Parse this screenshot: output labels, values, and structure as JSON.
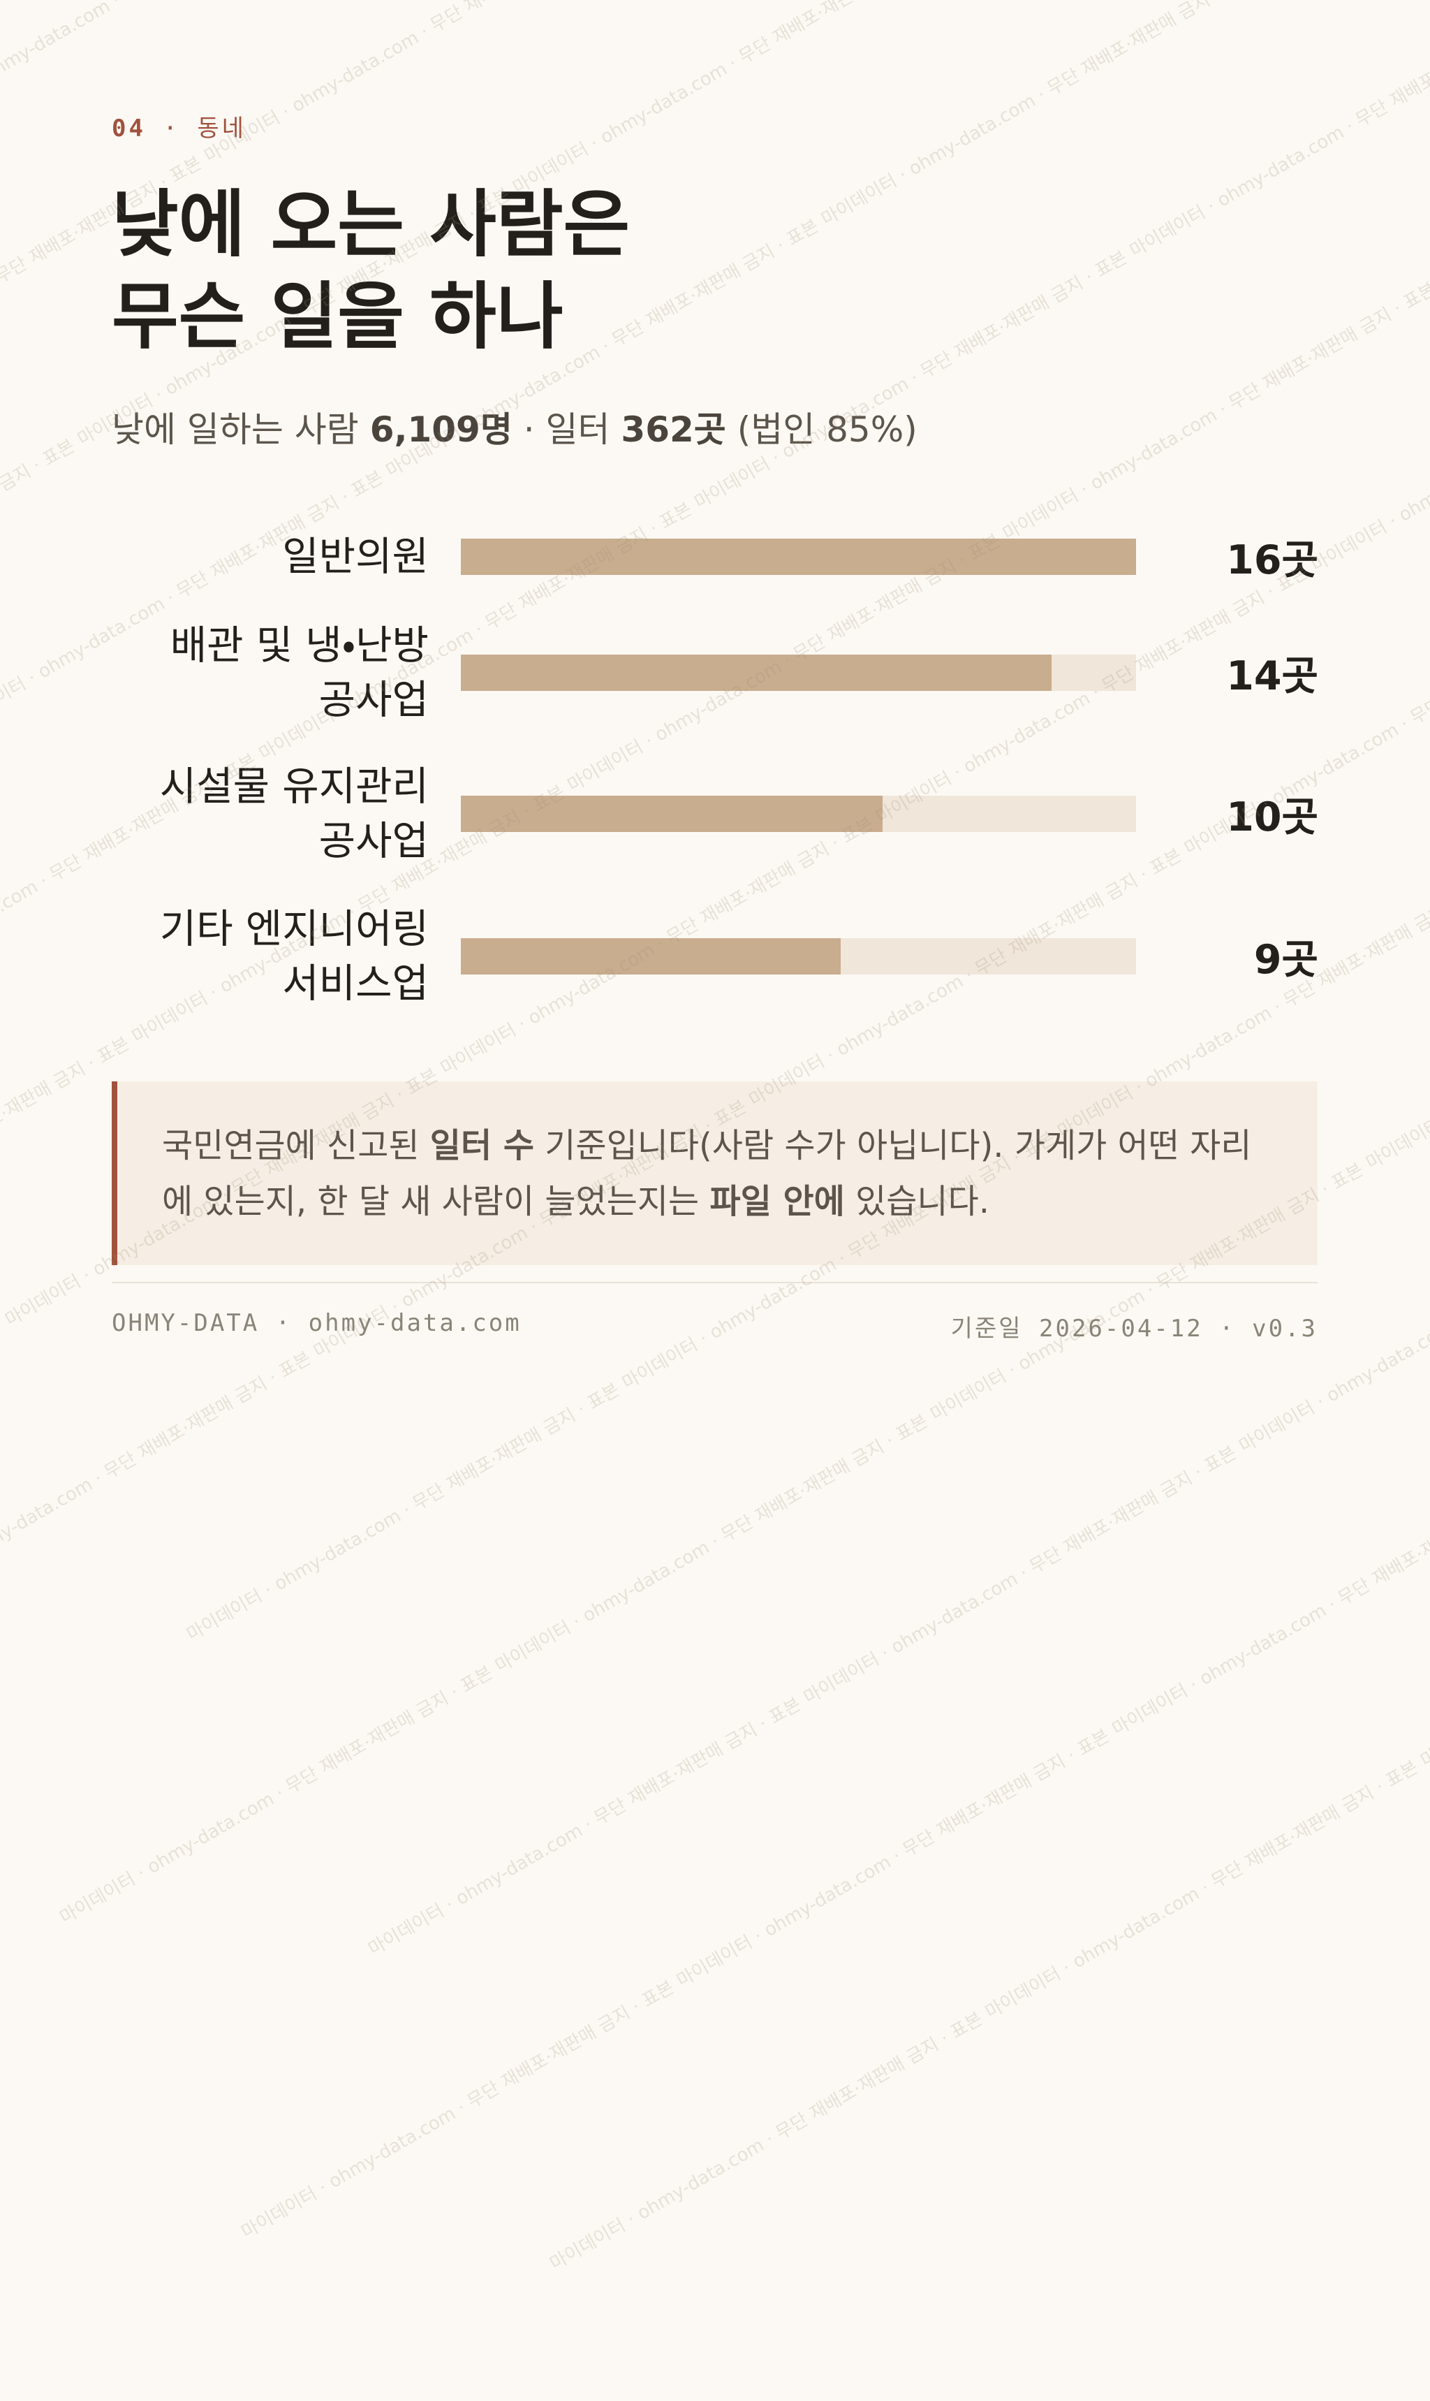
{
  "eyebrow": {
    "number": "04",
    "separator": "·",
    "section": "동네"
  },
  "chart_data": {
    "type": "hbar",
    "title": [
      "낮에 오는 사람은",
      "무슨 일을 하나"
    ],
    "subtitle": [
      {
        "text": "낮에 일하는 사람 ",
        "strong": false
      },
      {
        "text": "6,109명",
        "strong": true
      },
      {
        "text": " · 일터 ",
        "strong": false
      },
      {
        "text": "362곳",
        "strong": true
      },
      {
        "text": " (법인 85%)",
        "strong": false
      }
    ],
    "categories": [
      "일반의원",
      "배관 및 냉・난방 공사업",
      "시설물 유지관리 공사업",
      "기타 엔지니어링 서비스업"
    ],
    "values": [
      16,
      14,
      10,
      9
    ],
    "value_labels": [
      "16곳",
      "14곳",
      "10곳",
      "9곳"
    ],
    "xlim": [
      0,
      16
    ],
    "color": "#c8ad8e",
    "track_color": "#f0e6da"
  },
  "note": [
    {
      "text": "국민연금에 신고된 ",
      "strong": false
    },
    {
      "text": "일터 수",
      "strong": true
    },
    {
      "text": " 기준입니다(사람 수가 아닙니다). 가게가 어떤 자리에 있는지, 한 달 새 사람이 늘었는지는 ",
      "strong": false
    },
    {
      "text": "파일 안에",
      "strong": true
    },
    {
      "text": " 있습니다.",
      "strong": false
    }
  ],
  "footer": {
    "left": "OHMY-DATA · ohmy-data.com",
    "date_label": "기준일",
    "date": "2026-04-12 · v0.3"
  },
  "watermark": "마이데이터 · ohmy-data.com · 무단 재배포·재판매 금지 · 표본"
}
